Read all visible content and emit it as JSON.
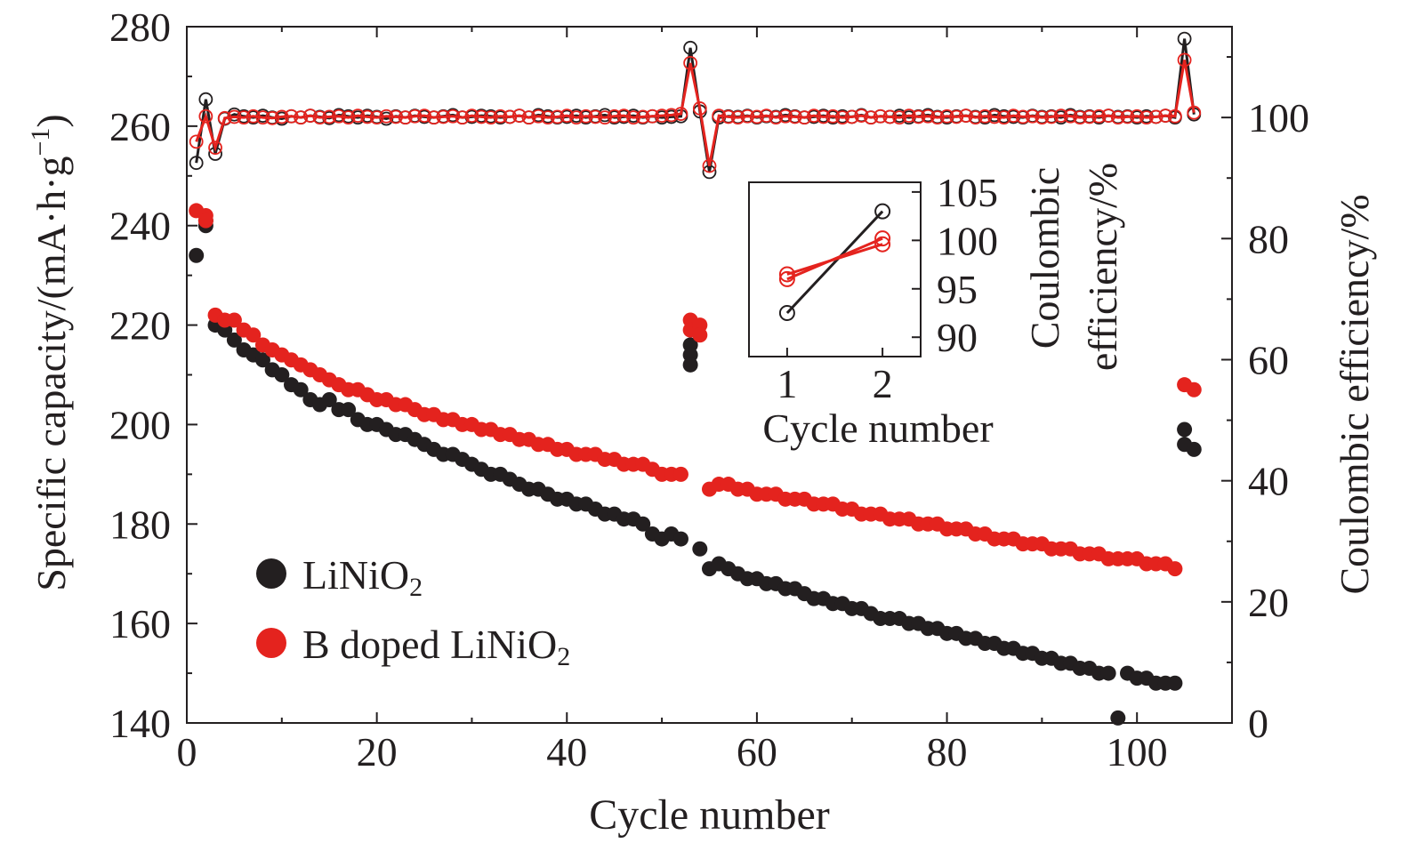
{
  "chart_data": [
    {
      "type": "scatter",
      "role": "main",
      "xlabel": "Cycle number",
      "ylabel": "Specific capacity/(mA·h·g",
      "ylabel_sup": "−1",
      "ylabel_close": ")",
      "y2label": "Coulombic efficiency/%",
      "xlim": [
        0,
        110
      ],
      "ylim": [
        140,
        280
      ],
      "y2lim": [
        0,
        115
      ],
      "xticks": [
        0,
        20,
        40,
        60,
        80,
        100
      ],
      "yticks": [
        140,
        160,
        180,
        200,
        220,
        240,
        260,
        280
      ],
      "y2ticks": [
        0,
        20,
        40,
        60,
        80,
        100
      ],
      "legend": {
        "placement": "lower-left",
        "items": [
          {
            "series": 0,
            "text": "LiNiO",
            "sub": "2"
          },
          {
            "series": 1,
            "text": "B doped LiNiO",
            "sub": "2"
          }
        ]
      },
      "series": [
        {
          "name": "LiNiO2",
          "color": "#231f20",
          "marker": "filled-circle",
          "axis": "left",
          "x": [
            1,
            2,
            2,
            3,
            4,
            5,
            6,
            7,
            8,
            9,
            10,
            11,
            12,
            13,
            14,
            15,
            16,
            17,
            18,
            19,
            20,
            21,
            22,
            23,
            24,
            25,
            26,
            27,
            28,
            29,
            30,
            31,
            32,
            33,
            34,
            35,
            36,
            37,
            38,
            39,
            40,
            41,
            42,
            43,
            44,
            45,
            46,
            47,
            48,
            49,
            50,
            51,
            52,
            53,
            53,
            53,
            54,
            55,
            56,
            57,
            58,
            59,
            60,
            61,
            62,
            63,
            64,
            65,
            66,
            67,
            68,
            69,
            70,
            71,
            72,
            73,
            74,
            75,
            76,
            77,
            78,
            79,
            80,
            81,
            82,
            83,
            84,
            85,
            86,
            87,
            88,
            89,
            90,
            91,
            92,
            93,
            94,
            95,
            96,
            97,
            98,
            99,
            100,
            101,
            102,
            103,
            104,
            105,
            105,
            106
          ],
          "y": [
            234,
            241,
            240,
            220,
            219,
            217,
            215,
            214,
            213,
            211,
            210,
            208,
            207,
            205,
            204,
            205,
            203,
            203,
            201,
            200,
            200,
            199,
            198,
            198,
            197,
            196,
            195,
            194,
            194,
            193,
            192,
            191,
            190,
            190,
            189,
            188,
            187,
            187,
            186,
            185,
            185,
            184,
            184,
            183,
            182,
            182,
            181,
            181,
            180,
            178,
            177,
            178,
            177,
            216,
            214,
            212,
            175,
            171,
            172,
            171,
            170,
            169,
            169,
            168,
            168,
            167,
            167,
            166,
            165,
            165,
            164,
            164,
            163,
            163,
            162,
            161,
            161,
            161,
            160,
            160,
            159,
            159,
            158,
            158,
            157,
            157,
            156,
            156,
            155,
            155,
            154,
            154,
            153,
            153,
            152,
            152,
            151,
            151,
            150,
            150,
            141,
            150,
            149,
            149,
            148,
            148,
            148,
            199,
            196,
            195
          ]
        },
        {
          "name": "B doped LiNiO2",
          "color": "#e4231e",
          "marker": "filled-circle",
          "axis": "left",
          "x": [
            1,
            2,
            2,
            3,
            4,
            5,
            6,
            7,
            8,
            9,
            10,
            11,
            12,
            13,
            14,
            15,
            16,
            17,
            18,
            19,
            20,
            21,
            22,
            23,
            24,
            25,
            26,
            27,
            28,
            29,
            30,
            31,
            32,
            33,
            34,
            35,
            36,
            37,
            38,
            39,
            40,
            41,
            42,
            43,
            44,
            45,
            46,
            47,
            48,
            49,
            50,
            51,
            52,
            53,
            53,
            54,
            54,
            55,
            56,
            57,
            58,
            59,
            60,
            61,
            62,
            63,
            64,
            65,
            66,
            67,
            68,
            69,
            70,
            71,
            72,
            73,
            74,
            75,
            76,
            77,
            78,
            79,
            80,
            81,
            82,
            83,
            84,
            85,
            86,
            87,
            88,
            89,
            90,
            91,
            92,
            93,
            94,
            95,
            96,
            97,
            98,
            99,
            100,
            101,
            102,
            103,
            104,
            105,
            106
          ],
          "y": [
            243,
            242,
            241,
            222,
            221,
            221,
            219,
            218,
            216,
            215,
            214,
            213,
            212,
            211,
            210,
            209,
            208,
            207,
            207,
            206,
            205,
            205,
            204,
            204,
            203,
            202,
            202,
            201,
            201,
            200,
            200,
            199,
            199,
            198,
            198,
            197,
            197,
            196,
            196,
            195,
            195,
            194,
            194,
            194,
            193,
            193,
            192,
            192,
            192,
            191,
            190,
            190,
            190,
            221,
            219,
            220,
            218,
            187,
            188,
            188,
            187,
            187,
            186,
            186,
            186,
            185,
            185,
            185,
            184,
            184,
            184,
            183,
            183,
            182,
            182,
            182,
            181,
            181,
            181,
            180,
            180,
            180,
            179,
            179,
            179,
            178,
            178,
            177,
            177,
            177,
            176,
            176,
            176,
            175,
            175,
            175,
            174,
            174,
            174,
            173,
            173,
            173,
            173,
            172,
            172,
            172,
            171,
            208,
            207
          ]
        },
        {
          "name": "LiNiO2 CE",
          "color": "#231f20",
          "marker": "open-circle-line",
          "axis": "right",
          "x": [
            1,
            2,
            3,
            4,
            5,
            6,
            7,
            8,
            9,
            10,
            11,
            12,
            13,
            14,
            15,
            16,
            17,
            18,
            19,
            20,
            21,
            22,
            23,
            24,
            25,
            26,
            27,
            28,
            29,
            30,
            31,
            32,
            33,
            34,
            35,
            36,
            37,
            38,
            39,
            40,
            41,
            42,
            43,
            44,
            45,
            46,
            47,
            48,
            49,
            50,
            51,
            52,
            53,
            54,
            55,
            56,
            57,
            58,
            59,
            60,
            61,
            62,
            63,
            64,
            65,
            66,
            67,
            68,
            69,
            70,
            71,
            72,
            73,
            74,
            75,
            76,
            77,
            78,
            79,
            80,
            81,
            82,
            83,
            84,
            85,
            86,
            87,
            88,
            89,
            90,
            91,
            92,
            93,
            94,
            95,
            96,
            97,
            98,
            99,
            100,
            101,
            102,
            103,
            104,
            105,
            106
          ],
          "y": [
            92.5,
            103,
            94,
            99.8,
            100.5,
            100.2,
            100,
            100.3,
            100,
            99.8,
            100.2,
            100,
            100.3,
            100.1,
            99.9,
            100.4,
            100.2,
            100,
            100.3,
            100.1,
            99.8,
            100.2,
            100,
            100.3,
            100.1,
            100,
            100.2,
            100.4,
            100,
            100.1,
            100.3,
            100.2,
            100,
            100.1,
            100.3,
            100,
            100.4,
            100.2,
            100,
            100.1,
            100.3,
            100,
            100.2,
            100.4,
            100,
            100.1,
            100.3,
            100,
            100.2,
            100,
            100.1,
            100.2,
            111.5,
            101,
            91,
            100,
            100.2,
            100.1,
            100.3,
            100,
            100.2,
            100.1,
            100.4,
            100.2,
            100,
            100.1,
            100.3,
            100,
            100.2,
            100.1,
            100.4,
            100,
            100.2,
            100.1,
            100.3,
            100,
            100.2,
            100.4,
            100.1,
            100,
            100.2,
            100.3,
            100.1,
            100,
            100.4,
            100.2,
            100.1,
            100,
            100.3,
            100.1,
            100.2,
            100,
            100.4,
            100.1,
            100.2,
            100,
            100.3,
            100.1,
            100.2,
            100,
            100.2,
            100.1,
            100.3,
            100,
            113,
            100.5
          ]
        },
        {
          "name": "B doped LiNiO2 CE",
          "color": "#e4231e",
          "marker": "open-circle-line",
          "axis": "right",
          "x": [
            1,
            2,
            3,
            4,
            5,
            6,
            7,
            8,
            9,
            10,
            11,
            12,
            13,
            14,
            15,
            16,
            17,
            18,
            19,
            20,
            21,
            22,
            23,
            24,
            25,
            26,
            27,
            28,
            29,
            30,
            31,
            32,
            33,
            34,
            35,
            36,
            37,
            38,
            39,
            40,
            41,
            42,
            43,
            44,
            45,
            46,
            47,
            48,
            49,
            50,
            51,
            52,
            53,
            54,
            55,
            56,
            57,
            58,
            59,
            60,
            61,
            62,
            63,
            64,
            65,
            66,
            67,
            68,
            69,
            70,
            71,
            72,
            73,
            74,
            75,
            76,
            77,
            78,
            79,
            80,
            81,
            82,
            83,
            84,
            85,
            86,
            87,
            88,
            89,
            90,
            91,
            92,
            93,
            94,
            95,
            96,
            97,
            98,
            99,
            100,
            101,
            102,
            103,
            104,
            105,
            106
          ],
          "y": [
            96,
            100.2,
            95,
            99.9,
            100.1,
            100,
            100.2,
            100,
            99.9,
            100.1,
            100.2,
            100,
            100.3,
            100,
            100.1,
            100.2,
            100,
            100.3,
            100.1,
            100,
            100.2,
            100.1,
            100,
            100.2,
            100.3,
            100,
            100.1,
            100.2,
            100,
            100.3,
            100.1,
            100,
            100.2,
            100.1,
            100.3,
            100,
            100.2,
            100,
            100.1,
            100.3,
            100,
            100.2,
            100.1,
            100,
            100.2,
            100.3,
            100,
            100.1,
            100.2,
            100.3,
            100.4,
            100.6,
            109,
            101.5,
            92,
            100.3,
            100.1,
            100,
            100.2,
            100.1,
            100.3,
            100,
            100.2,
            100.1,
            100,
            100.3,
            100.1,
            100.2,
            100,
            100.1,
            100.3,
            100,
            100.2,
            100.1,
            100,
            100.3,
            100.1,
            100.2,
            100,
            100.2,
            100.1,
            100.3,
            100,
            100.2,
            100.1,
            100,
            100.3,
            100.1,
            100.2,
            100,
            100.1,
            100.3,
            100.2,
            100,
            100.1,
            100.2,
            100.3,
            100,
            100.1,
            100.2,
            100,
            100.1,
            100.3,
            100.2,
            109.5,
            100.8
          ]
        }
      ]
    },
    {
      "type": "line",
      "role": "inset",
      "xlabel": "Cycle number",
      "ylabel": "Coulombic efficiency/%",
      "ylabel_line1": "Coulombic",
      "ylabel_line2": "efficiency/%",
      "xlim": [
        0.6,
        2.4
      ],
      "ylim": [
        88,
        106
      ],
      "xticks": [
        1,
        2
      ],
      "yticks": [
        90,
        95,
        100,
        105
      ],
      "series": [
        {
          "name": "LiNiO2",
          "color": "#231f20",
          "marker": "open-circle",
          "x": [
            1,
            2
          ],
          "y": [
            92.5,
            103
          ]
        },
        {
          "name": "B doped LiNiO2",
          "color": "#e4231e",
          "marker": "open-circle",
          "x": [
            1,
            2,
            1,
            2
          ],
          "y": [
            96,
            100.2,
            96.5,
            99.6
          ]
        }
      ]
    }
  ]
}
